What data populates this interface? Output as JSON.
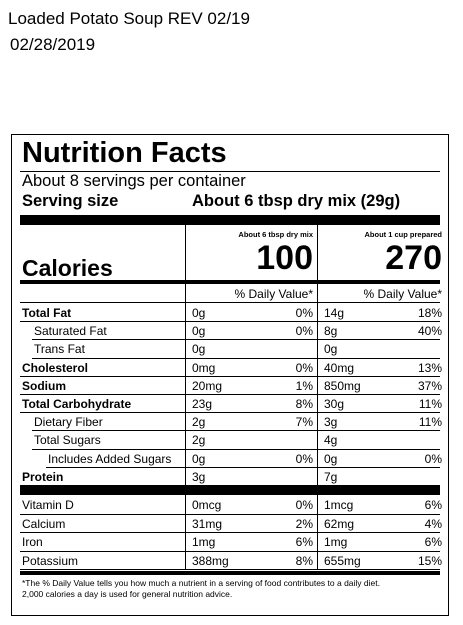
{
  "header": {
    "product": "Loaded Potato Soup REV 02/19",
    "date": "02/28/2019"
  },
  "label": {
    "title": "Nutrition Facts",
    "servings": "About 8 servings per container",
    "serving_size_label": "Serving size",
    "serving_size_value": "About 6 tbsp dry mix (29g)",
    "col1_heading": "About 6 tbsp dry mix",
    "col2_heading": "About 1 cup prepared",
    "calories_label": "Calories",
    "calories_col1": "100",
    "calories_col2": "270",
    "dv_heading": "% Daily Value*",
    "nutrients": [
      {
        "name": "Total Fat",
        "a1": "0g",
        "p1": "0%",
        "a2": "14g",
        "p2": "18%"
      },
      {
        "name": "Saturated Fat",
        "a1": "0g",
        "p1": "0%",
        "a2": "8g",
        "p2": "40%"
      },
      {
        "name": "Trans Fat",
        "a1": "0g",
        "p1": "",
        "a2": "0g",
        "p2": ""
      },
      {
        "name": "Cholesterol",
        "a1": "0mg",
        "p1": "0%",
        "a2": "40mg",
        "p2": "13%"
      },
      {
        "name": "Sodium",
        "a1": "20mg",
        "p1": "1%",
        "a2": "850mg",
        "p2": "37%"
      },
      {
        "name": "Total Carbohydrate",
        "a1": "23g",
        "p1": "8%",
        "a2": "30g",
        "p2": "11%"
      },
      {
        "name": "Dietary Fiber",
        "a1": "2g",
        "p1": "7%",
        "a2": "3g",
        "p2": "11%"
      },
      {
        "name": "Total Sugars",
        "a1": "2g",
        "p1": "",
        "a2": "4g",
        "p2": ""
      },
      {
        "name": "Includes Added Sugars",
        "a1": "0g",
        "p1": "0%",
        "a2": "0g",
        "p2": "0%"
      },
      {
        "name": "Protein",
        "a1": "3g",
        "p1": "",
        "a2": "7g",
        "p2": ""
      }
    ],
    "vitamins": [
      {
        "name": "Vitamin D",
        "a1": "0mcg",
        "p1": "0%",
        "a2": "1mcg",
        "p2": "6%"
      },
      {
        "name": "Calcium",
        "a1": "31mg",
        "p1": "2%",
        "a2": "62mg",
        "p2": "4%"
      },
      {
        "name": "Iron",
        "a1": "1mg",
        "p1": "6%",
        "a2": "1mg",
        "p2": "6%"
      },
      {
        "name": "Potassium",
        "a1": "388mg",
        "p1": "8%",
        "a2": "655mg",
        "p2": "15%"
      }
    ],
    "footnote_line1": "*The % Daily Value tells you how much a nutrient in a serving of food contributes to a daily diet.",
    "footnote_line2": "2,000 calories a day is used for general nutrition advice."
  }
}
